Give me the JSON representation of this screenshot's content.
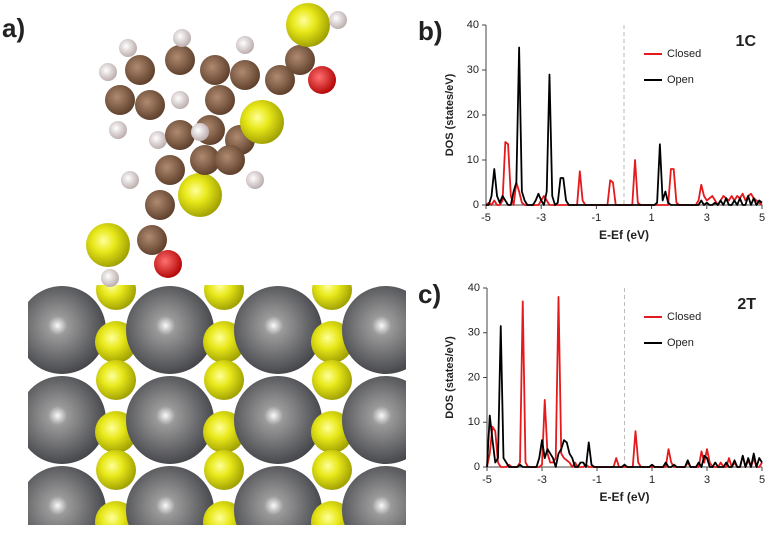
{
  "image_panel": {
    "label": "a)"
  },
  "chart_data": [
    {
      "type": "line",
      "panel_label": "b)",
      "annotation": "1C",
      "xlabel": "E-Ef (eV)",
      "ylabel": "DOS (states/eV)",
      "xlim": [
        -5,
        5
      ],
      "ylim": [
        0,
        40
      ],
      "xticks": [
        -5,
        -3,
        -1,
        1,
        3,
        5
      ],
      "yticks": [
        0,
        10,
        20,
        30,
        40
      ],
      "vline": 0,
      "legend": "upper right",
      "x": [
        -5,
        -4.9,
        -4.8,
        -4.7,
        -4.6,
        -4.5,
        -4.4,
        -4.3,
        -4.2,
        -4.1,
        -4,
        -3.9,
        -3.8,
        -3.7,
        -3.6,
        -3.5,
        -3.4,
        -3.3,
        -3.2,
        -3.1,
        -3,
        -2.9,
        -2.8,
        -2.7,
        -2.6,
        -2.5,
        -2.4,
        -2.3,
        -2.2,
        -2.1,
        -2,
        -1.9,
        -1.8,
        -1.7,
        -1.6,
        -1.5,
        -1.4,
        -1.3,
        -1.2,
        -1.1,
        -1,
        -0.9,
        -0.8,
        -0.7,
        -0.6,
        -0.5,
        -0.4,
        -0.3,
        -0.2,
        -0.1,
        0,
        0.1,
        0.2,
        0.3,
        0.4,
        0.5,
        0.6,
        0.7,
        0.8,
        0.9,
        1,
        1.1,
        1.2,
        1.3,
        1.4,
        1.5,
        1.6,
        1.7,
        1.8,
        1.9,
        2,
        2.1,
        2.2,
        2.3,
        2.4,
        2.5,
        2.6,
        2.7,
        2.8,
        2.9,
        3,
        3.1,
        3.2,
        3.3,
        3.4,
        3.5,
        3.6,
        3.7,
        3.8,
        3.9,
        4,
        4.1,
        4.2,
        4.3,
        4.4,
        4.5,
        4.6,
        4.7,
        4.8,
        4.9,
        5
      ],
      "series": [
        {
          "name": "Closed",
          "color": "#e41a1c",
          "values": [
            0,
            0.5,
            0,
            1,
            0,
            0,
            1,
            14,
            13.5,
            2,
            0,
            5,
            3,
            0.5,
            0,
            0,
            0,
            0,
            0,
            0,
            1,
            2,
            1,
            0,
            0,
            0,
            0,
            0,
            0,
            0,
            0,
            0,
            0,
            0,
            7.5,
            1,
            0,
            0,
            0,
            0,
            0,
            0,
            0,
            0,
            0,
            5.5,
            5,
            0,
            0,
            0,
            0,
            0,
            0,
            0,
            10,
            0.5,
            0,
            0,
            0,
            0,
            0,
            0,
            0,
            0,
            0,
            0,
            0,
            8,
            8,
            0.5,
            0,
            0,
            0,
            0,
            0,
            0,
            0,
            1,
            4.5,
            2,
            1,
            1.5,
            2,
            1,
            0,
            1,
            2,
            1.5,
            1,
            2,
            1,
            2,
            1.5,
            2.5,
            1,
            2,
            2.5,
            1.5,
            1,
            0.5,
            0
          ]
        },
        {
          "name": "Open",
          "color": "#000000",
          "values": [
            0,
            0,
            2,
            8,
            2,
            0.5,
            2,
            1,
            0,
            0,
            3,
            5,
            35,
            3,
            1,
            0,
            0,
            0,
            1,
            2.5,
            1,
            0,
            3,
            29,
            2,
            0,
            0.5,
            6,
            6,
            1,
            0,
            0,
            0,
            0,
            0,
            0,
            0,
            0,
            0,
            0,
            0,
            0,
            0,
            0,
            0,
            0,
            0,
            0,
            0,
            0,
            0,
            0,
            0,
            0,
            0,
            0,
            0,
            0,
            0,
            0,
            0,
            0,
            0.5,
            13.5,
            1,
            3,
            0.5,
            0,
            0,
            0,
            0,
            0,
            0,
            0,
            0,
            0,
            0,
            0,
            1,
            0,
            0.5,
            0,
            0,
            0.5,
            0,
            1,
            0,
            1.5,
            0,
            0,
            1,
            0,
            1.5,
            0,
            0,
            2,
            0,
            1.5,
            0,
            1,
            0.5
          ]
        }
      ]
    },
    {
      "type": "line",
      "panel_label": "c)",
      "annotation": "2T",
      "xlabel": "E-Ef (eV)",
      "ylabel": "DOS (states/eV)",
      "xlim": [
        -5,
        5
      ],
      "ylim": [
        0,
        40
      ],
      "xticks": [
        -5,
        -3,
        -1,
        1,
        3,
        5
      ],
      "yticks": [
        0,
        10,
        20,
        30,
        40
      ],
      "vline": 0,
      "legend": "upper right",
      "x": [
        -5,
        -4.9,
        -4.8,
        -4.7,
        -4.6,
        -4.5,
        -4.4,
        -4.3,
        -4.2,
        -4.1,
        -4,
        -3.9,
        -3.8,
        -3.7,
        -3.6,
        -3.5,
        -3.4,
        -3.3,
        -3.2,
        -3.1,
        -3,
        -2.9,
        -2.8,
        -2.7,
        -2.6,
        -2.5,
        -2.4,
        -2.3,
        -2.2,
        -2.1,
        -2,
        -1.9,
        -1.8,
        -1.7,
        -1.6,
        -1.5,
        -1.4,
        -1.3,
        -1.2,
        -1.1,
        -1,
        -0.9,
        -0.8,
        -0.7,
        -0.6,
        -0.5,
        -0.4,
        -0.3,
        -0.2,
        -0.1,
        0,
        0.1,
        0.2,
        0.3,
        0.4,
        0.5,
        0.6,
        0.7,
        0.8,
        0.9,
        1,
        1.1,
        1.2,
        1.3,
        1.4,
        1.5,
        1.6,
        1.7,
        1.8,
        1.9,
        2,
        2.1,
        2.2,
        2.3,
        2.4,
        2.5,
        2.6,
        2.7,
        2.8,
        2.9,
        3,
        3.1,
        3.2,
        3.3,
        3.4,
        3.5,
        3.6,
        3.7,
        3.8,
        3.9,
        4,
        4.1,
        4.2,
        4.3,
        4.4,
        4.5,
        4.6,
        4.7,
        4.8,
        4.9,
        5
      ],
      "series": [
        {
          "name": "Closed",
          "color": "#e41a1c",
          "values": [
            0,
            3,
            9,
            8,
            1,
            0,
            0,
            0,
            0.5,
            0,
            0,
            0,
            1,
            37,
            1,
            0,
            0,
            0,
            0,
            0,
            0.5,
            15,
            3,
            1,
            1,
            2,
            38,
            3,
            2,
            1.5,
            1,
            0,
            1,
            0,
            0,
            0,
            0.5,
            0,
            0,
            0,
            0,
            0,
            0,
            0,
            0,
            0,
            0,
            2,
            0,
            0,
            0,
            0,
            0,
            0,
            8,
            1,
            0,
            0,
            0,
            0,
            0,
            0,
            0,
            0,
            0,
            0,
            4,
            1,
            0,
            0,
            0,
            0,
            0,
            1,
            0,
            0,
            0,
            0,
            3.5,
            1,
            4,
            1,
            0,
            0,
            0,
            1,
            0,
            0,
            2,
            0,
            1,
            0,
            0,
            2.5,
            0,
            1.5,
            0,
            2,
            0,
            0,
            1
          ]
        },
        {
          "name": "Open",
          "color": "#000000",
          "values": [
            0,
            11.5,
            6,
            1,
            2,
            31.5,
            2,
            1,
            0,
            0,
            0,
            0,
            0.5,
            0,
            0,
            0,
            0,
            0,
            0,
            2,
            6,
            2,
            4,
            3,
            2,
            0,
            3,
            4,
            6,
            5.5,
            3,
            2,
            0,
            0,
            1,
            1,
            0,
            5.5,
            0.5,
            0,
            0,
            0,
            0,
            0,
            0,
            0,
            0,
            0,
            0,
            0,
            0.5,
            0,
            0,
            0,
            0,
            0,
            0,
            0,
            0,
            0,
            0.5,
            0,
            0,
            0,
            0,
            1,
            0,
            0,
            0.5,
            0,
            0,
            0,
            0,
            1.5,
            0,
            0,
            0,
            1,
            0,
            2.5,
            2,
            0,
            0,
            1,
            0,
            0,
            0,
            1,
            0,
            0,
            1.5,
            0,
            0,
            2.5,
            0,
            2,
            0,
            3,
            0,
            2,
            1
          ]
        }
      ]
    }
  ]
}
